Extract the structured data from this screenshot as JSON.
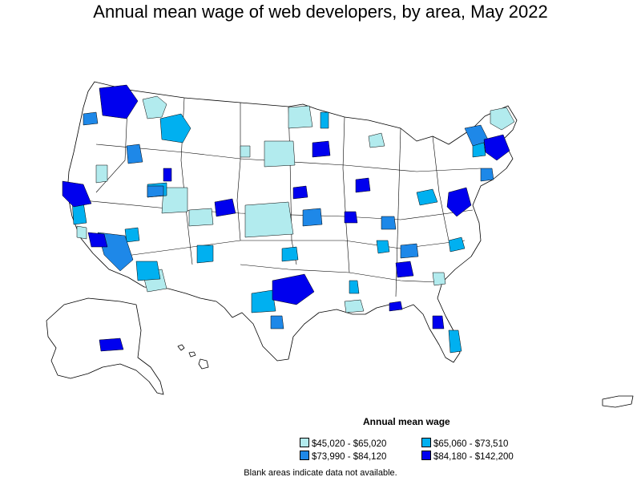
{
  "title": "Annual mean wage of web developers, by area, May 2022",
  "legend": {
    "title": "Annual mean wage",
    "items": [
      {
        "label": "$45,020 - $65,020",
        "color": "#b2ebee"
      },
      {
        "label": "$65,060 - $73,510",
        "color": "#00b0f0"
      },
      {
        "label": "$73,990 - $84,120",
        "color": "#1e88e8"
      },
      {
        "label": "$84,180 - $142,200",
        "color": "#0000ee"
      }
    ]
  },
  "note": "Blank areas indicate data not available."
}
